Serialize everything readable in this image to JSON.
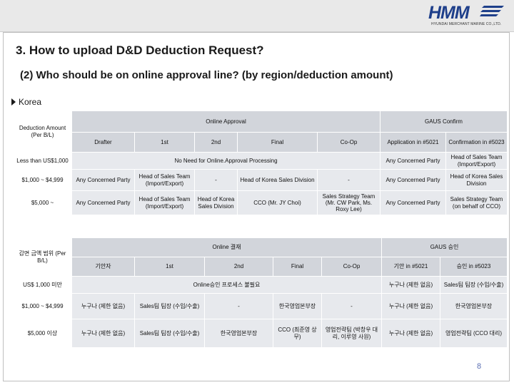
{
  "header": {
    "logo_text": "HMM",
    "logo_subtitle": "HYUNDAI MERCHANT MARINE CO.,LTD."
  },
  "title": "3. How to upload D&D Deduction Request?",
  "subtitle": "(2) Who should be on online approval line? (by region/deduction amount)",
  "region": "Korea",
  "table_en": {
    "corner": "Deduction Amount (Per B/L)",
    "group_online": "Online Approval",
    "group_gaus": "GAUS Confirm",
    "cols": [
      "Drafter",
      "1st",
      "2nd",
      "Final",
      "Co-Op",
      "Application in #5021",
      "Confirmation in #5023"
    ],
    "rows": [
      {
        "amount": "Less than US$1,000",
        "merged": "No Need for Online.Approval Processing",
        "app": "Any Concerned Party",
        "conf": "Head of Sales Team (Import/Export)"
      },
      {
        "amount": "$1,000 ~ $4,999",
        "drafter": "Any Concerned Party",
        "first": "Head of Sales Team (Import/Export)",
        "second": "-",
        "final": "Head of Korea Sales Division",
        "coop": "-",
        "app": "Any Concerned Party",
        "conf": "Head of Korea Sales Division"
      },
      {
        "amount": "$5,000 ~",
        "drafter": "Any Concerned Party",
        "first": "Head of Sales Team (Import/Export)",
        "second": "Head of Korea Sales Division",
        "final": "CCO (Mr. JY Choi)",
        "coop": "Sales Strategy Team (Mr. CW Park, Ms. Roxy Lee)",
        "app": "Any Concerned Party",
        "conf": "Sales Strategy Team (on behalf of CCO)"
      }
    ]
  },
  "table_kr": {
    "corner": "감면 금액 범위 (Per B/L)",
    "group_online": "Online 결재",
    "group_gaus": "GAUS 승인",
    "cols": [
      "기안자",
      "1st",
      "2nd",
      "Final",
      "Co-Op",
      "기안 in #5021",
      "승인 in #5023"
    ],
    "rows": [
      {
        "amount": "US$ 1,000 미만",
        "merged": "Online승인 프로세스 불필요",
        "app": "누구나 (제한 없음)",
        "conf": "Sales팀 팀장 (수입/수출)"
      },
      {
        "amount": "$1,000 ~ $4,999",
        "drafter": "누구나 (제한 없음)",
        "first": "Sales팀 팀장 (수입/수출)",
        "second": "-",
        "final": "한국영업본부장",
        "coop": "-",
        "app": "누구나 (제한 없음)",
        "conf": "한국영업본부장"
      },
      {
        "amount": "$5,000 이상",
        "drafter": "누구나 (제한 없음)",
        "first": "Sales팀 팀장 (수입/수출)",
        "second": "한국영업본부장",
        "final": "CCO (최준영 상무)",
        "coop": "영업전략팀 (박창우 대리, 이루영 사원)",
        "app": "누구나 (제한 없음)",
        "conf": "영업전략팀 (CCO 대리)"
      }
    ]
  },
  "page_number": "8",
  "colors": {
    "header_cell": "#d2d5db",
    "body_cell": "#e7e9ed",
    "logo": "#1e3f8a",
    "page_number": "#5b6fb3"
  }
}
